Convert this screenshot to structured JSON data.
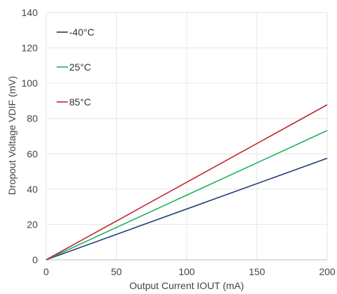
{
  "chart_data": {
    "type": "line",
    "title": "",
    "xlabel": "Output Current IOUT (mA)",
    "ylabel": "Dropout Voltage VDIF (mV)",
    "xlim": [
      0,
      200
    ],
    "ylim": [
      0,
      140
    ],
    "xticks": [
      "0",
      "50",
      "100",
      "150",
      "200"
    ],
    "yticks": [
      "0",
      "20",
      "40",
      "60",
      "80",
      "100",
      "120",
      "140"
    ],
    "grid": "vertical and horizontal",
    "legend_position": "top-left",
    "series": [
      {
        "name": "-40°C",
        "color": "#1f3a7a",
        "x": [
          0,
          200
        ],
        "y": [
          0,
          57.5
        ]
      },
      {
        "name": "25°C",
        "color": "#1fb35a",
        "x": [
          0,
          200
        ],
        "y": [
          0,
          73.2
        ]
      },
      {
        "name": "85°C",
        "color": "#c0272d",
        "x": [
          0,
          200
        ],
        "y": [
          0,
          87.8
        ]
      }
    ]
  }
}
